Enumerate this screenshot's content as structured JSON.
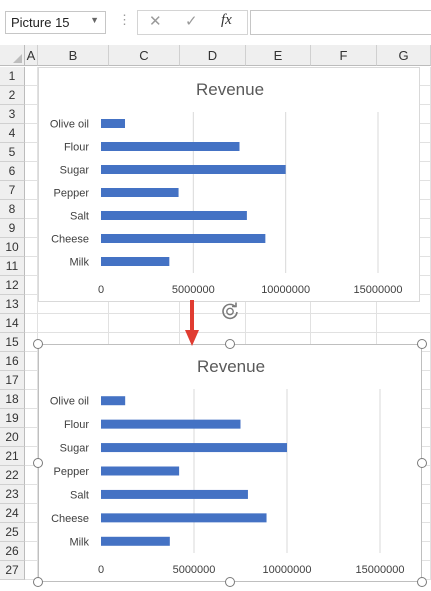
{
  "formula_bar": {
    "name_box": "Picture 15",
    "cancel_icon": "✕",
    "enter_icon": "✓",
    "fx_label": "fx",
    "formula": ""
  },
  "columns": [
    "A",
    "B",
    "C",
    "D",
    "E",
    "F",
    "G"
  ],
  "rows": [
    "1",
    "2",
    "3",
    "4",
    "5",
    "6",
    "7",
    "8",
    "9",
    "10",
    "11",
    "12",
    "13",
    "14",
    "15",
    "16",
    "17",
    "18",
    "19",
    "20",
    "21",
    "22",
    "23",
    "24",
    "25",
    "26",
    "27"
  ],
  "colors": {
    "bar": "#4472C4",
    "arrow": "#E03C31",
    "grid": "#d9d9d9"
  },
  "chart_data": [
    {
      "type": "bar",
      "orientation": "horizontal",
      "title": "Revenue",
      "categories": [
        "Olive oil",
        "Flour",
        "Sugar",
        "Pepper",
        "Salt",
        "Cheese",
        "Milk"
      ],
      "values": [
        1300000,
        7500000,
        10000000,
        4200000,
        7900000,
        8900000,
        3700000
      ],
      "xlim": [
        0,
        15000000
      ],
      "xticks": [
        "0",
        "5000000",
        "10000000",
        "15000000"
      ],
      "grid": true
    },
    {
      "type": "bar",
      "orientation": "horizontal",
      "title": "Revenue",
      "categories": [
        "Olive oil",
        "Flour",
        "Sugar",
        "Pepper",
        "Salt",
        "Cheese",
        "Milk"
      ],
      "values": [
        1300000,
        7500000,
        10000000,
        4200000,
        7900000,
        8900000,
        3700000
      ],
      "xlim": [
        0,
        15000000
      ],
      "xticks": [
        "0",
        "5000000",
        "10000000",
        "15000000"
      ],
      "grid": true
    }
  ]
}
